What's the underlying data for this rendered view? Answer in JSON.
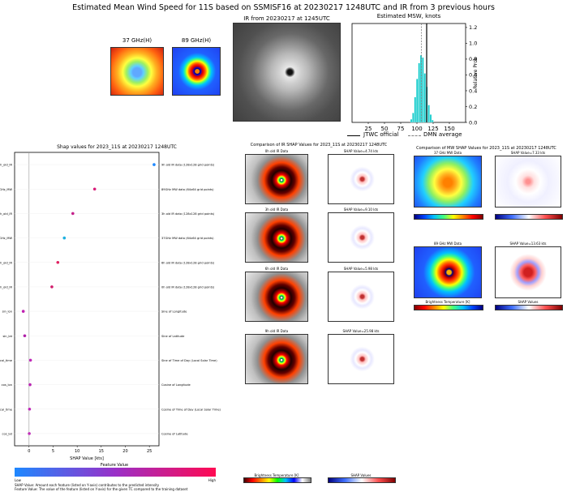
{
  "main_title": "Estimated Mean Wind Speed for 11S based on SSMISF16 at 20230217 1248UTC and IR from 3 previous hours",
  "micro_37": "37 GHz(H)",
  "micro_89": "89 GHz(H)",
  "ir_title": "IR from 20230217 at 1245UTC",
  "hist_chart": {
    "type": "bar",
    "title": "Estimated MSW, knots",
    "ylabel": "Relative Prob",
    "xlim": [
      0,
      175
    ],
    "ylim": [
      0,
      1.25
    ],
    "xticks": [
      "25",
      "50",
      "75",
      "100",
      "125",
      "150"
    ],
    "yticks": [
      "0.0",
      "0.2",
      "0.4",
      "0.6",
      "0.8",
      "1.0",
      "1.2"
    ],
    "bins_x": [
      90,
      93,
      96,
      99,
      102,
      105,
      108,
      111,
      114,
      117,
      120,
      123
    ],
    "bins_h": [
      0.04,
      0.12,
      0.32,
      0.55,
      0.75,
      0.85,
      0.82,
      0.62,
      0.45,
      0.22,
      0.1,
      0.03
    ],
    "jtwc": 115,
    "dmn": 107,
    "legend_jtwc": "JTWC official",
    "legend_dmn": "DMN average",
    "colors": {
      "bar": "#00c8c8",
      "jtwc": "#000000",
      "dmn": "#808080"
    }
  },
  "shap_chart": {
    "type": "scatter",
    "title": "Shap values for 2023_11S at 20230217 1248UTC",
    "xlabel": "SHAP Value [kts]",
    "xlim": [
      -3,
      27
    ],
    "xticks": [
      0,
      5,
      10,
      15,
      20,
      25
    ],
    "features": [
      {
        "name": "9h_old_IR",
        "value": 25.98,
        "desc": "9h old IR data (128x128 grid points)"
      },
      {
        "name": "89GHz_MW",
        "value": 13.63,
        "desc": "89GHz MW data (64x64 grid points)"
      },
      {
        "name": "3h_old_IR",
        "value": 9.1,
        "desc": "3h old IR data (128x128 grid points)"
      },
      {
        "name": "37GHz_MW",
        "value": 7.33,
        "desc": "37GHz MW data (64x64 grid points)"
      },
      {
        "name": "6h_old_IR",
        "value": 5.98,
        "desc": "6h old IR data (128x128 grid points)"
      },
      {
        "name": "0h_old_IR",
        "value": 4.74,
        "desc": "0h old IR data (128x128 grid points)"
      },
      {
        "name": "sin_lon",
        "value": -1.2,
        "desc": "Sine of Longitude"
      },
      {
        "name": "sin_lat",
        "value": -0.9,
        "desc": "Sine of Latitude"
      },
      {
        "name": "sin_local_time",
        "value": 0.3,
        "desc": "Sine of Time of Day (Local Solar Time)"
      },
      {
        "name": "cos_lon",
        "value": 0.2,
        "desc": "Cosine of Longitude"
      },
      {
        "name": "cos_local_time",
        "value": 0.1,
        "desc": "Cosine of Time of Day (Local Solar Time)"
      },
      {
        "name": "cos_lat",
        "value": 0.05,
        "desc": "Cosine of Latitude"
      }
    ],
    "feature_value_label": "Feature Value",
    "low_label": "Low",
    "high_label": "High",
    "note1": "SHAP Value: Amount each feature (listed on Y-axis) contributes to the predicted intensity",
    "note2": "Feature Value: The value of the feature (listed on Y-axis) for the given TC compared to the training dataset"
  },
  "ir_comparison": {
    "title": "Comparison of IR SHAP Values for 2023_11S at 20230217 1248UTC",
    "rows": [
      {
        "label": "0h old IR Data",
        "shap": "SHAP Value=4.74 kts"
      },
      {
        "label": "3h old IR Data",
        "shap": "SHAP Value=9.10 kts"
      },
      {
        "label": "6h old IR Data",
        "shap": "SHAP Value=5.98 kts"
      },
      {
        "label": "9h old IR Data",
        "shap": "SHAP Value=25.98 kts"
      }
    ],
    "cb_left": "Brightness Temperature [K]",
    "cb_right": "SHAP Values"
  },
  "mw_comparison": {
    "title": "Comparison of MW SHAP Values for 2023_11S at 20230217 1248UTC",
    "rows": [
      {
        "label": "37 GHz MW Data",
        "shap": "SHAP Value=7.33 kts"
      },
      {
        "label": "89 GHz MW Data",
        "shap": "SHAP Value=13.63 kts"
      }
    ],
    "cb_left": "Brightness Temperature [K]",
    "cb_right": "SHAP Values"
  }
}
